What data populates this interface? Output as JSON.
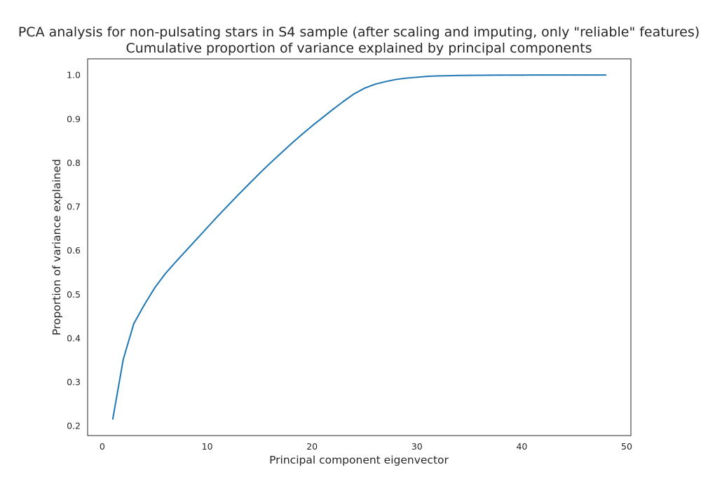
{
  "chart_data": {
    "type": "line",
    "title": "PCA analysis for non-pulsating stars in S4 sample (after scaling and imputing, only \"reliable\" features)",
    "subtitle": "Cumulative proportion of variance explained by principal components",
    "xlabel": "Principal component eigenvector",
    "ylabel": "Proportion of variance explained",
    "xlim": [
      -1.4,
      50.4
    ],
    "ylim": [
      0.178,
      1.037
    ],
    "xticks": [
      0,
      10,
      20,
      30,
      40,
      50
    ],
    "xtick_labels": [
      "0",
      "10",
      "20",
      "30",
      "40",
      "50"
    ],
    "yticks": [
      0.2,
      0.3,
      0.4,
      0.5,
      0.6,
      0.7,
      0.8,
      0.9,
      1.0
    ],
    "ytick_labels": [
      "0.2",
      "0.3",
      "0.4",
      "0.5",
      "0.6",
      "0.7",
      "0.8",
      "0.9",
      "1.0"
    ],
    "grid": false,
    "legend": false,
    "color": "#1f77b4",
    "series": [
      {
        "x": [
          1,
          2,
          3,
          4,
          5,
          6,
          7,
          8,
          9,
          10,
          11,
          12,
          13,
          14,
          15,
          16,
          17,
          18,
          19,
          20,
          21,
          22,
          23,
          24,
          25,
          26,
          27,
          28,
          29,
          30,
          31,
          32,
          33,
          34,
          35,
          36,
          37,
          38,
          39,
          40,
          41,
          42,
          43,
          44,
          45,
          46,
          47,
          48
        ],
        "values": [
          0.216,
          0.352,
          0.433,
          0.476,
          0.515,
          0.547,
          0.574,
          0.6,
          0.626,
          0.652,
          0.678,
          0.703,
          0.728,
          0.752,
          0.776,
          0.799,
          0.821,
          0.843,
          0.864,
          0.884,
          0.903,
          0.922,
          0.94,
          0.957,
          0.97,
          0.979,
          0.985,
          0.99,
          0.993,
          0.995,
          0.997,
          0.998,
          0.9985,
          0.999,
          0.9993,
          0.9995,
          0.9997,
          0.9998,
          0.9999,
          0.9999,
          1.0,
          1.0,
          1.0,
          1.0,
          1.0,
          1.0,
          1.0,
          1.0
        ]
      }
    ]
  }
}
